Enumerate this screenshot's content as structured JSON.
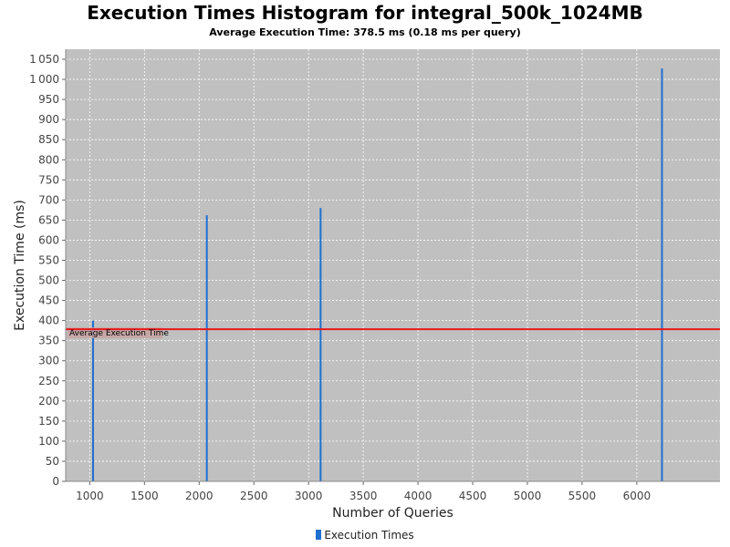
{
  "chart_data": {
    "type": "bar",
    "title": "Execution Times Histogram for integral_500k_1024MB",
    "subtitle": "Average Execution Time: 378.5 ms (0.18 ms per query)",
    "xlabel": "Number of Queries",
    "ylabel": "Execution Time (ms)",
    "xlim": [
      780,
      6760
    ],
    "ylim": [
      0,
      1075
    ],
    "x_ticks": [
      1000,
      1500,
      2000,
      2500,
      3000,
      3500,
      4000,
      4500,
      5000,
      5500,
      6000
    ],
    "y_ticks": [
      0,
      50,
      100,
      150,
      200,
      250,
      300,
      350,
      400,
      450,
      500,
      550,
      600,
      650,
      700,
      750,
      800,
      850,
      900,
      950,
      1000,
      1050
    ],
    "grid": true,
    "series": [
      {
        "name": "Execution Times",
        "color": "#1f6fd0",
        "x": [
          1030,
          2070,
          3110,
          6230
        ],
        "values": [
          400,
          662,
          680,
          1027
        ]
      }
    ],
    "marker": {
      "label": "Average Execution Time",
      "value": 378.5,
      "color": "#e8191a"
    },
    "legend": {
      "position": "bottom"
    },
    "colors": {
      "plot_background": "#c0c0c0",
      "grid": "#ffffff"
    }
  }
}
